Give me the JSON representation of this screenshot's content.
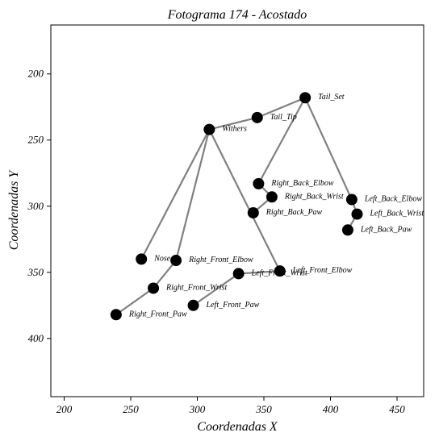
{
  "chart_data": {
    "type": "scatter",
    "title": "Fotograma 174 - Acostado",
    "xlabel": "Coordenadas X",
    "ylabel": "Coordenadas Y",
    "xlim": [
      190,
      470
    ],
    "ylim": [
      444,
      163
    ],
    "y_inverted": true,
    "grid": false,
    "x_ticks": [
      200,
      250,
      300,
      350,
      400,
      450
    ],
    "y_ticks": [
      200,
      250,
      300,
      350,
      400
    ],
    "x_tick_labels": [
      "200",
      "250",
      "300",
      "350",
      "400",
      "450"
    ],
    "y_tick_labels": [
      "200",
      "250",
      "300",
      "350",
      "400"
    ],
    "point_color": "#000000",
    "line_color": "#808080",
    "points": [
      {
        "name": "Tail_Set",
        "x": 381,
        "y": 218
      },
      {
        "name": "Tail_Tip",
        "x": 345,
        "y": 233
      },
      {
        "name": "Withers",
        "x": 309,
        "y": 242
      },
      {
        "name": "Right_Back_Elbow",
        "x": 346,
        "y": 283
      },
      {
        "name": "Right_Back_Wrist",
        "x": 356,
        "y": 293
      },
      {
        "name": "Right_Back_Paw",
        "x": 342,
        "y": 305
      },
      {
        "name": "Left_Back_Elbow",
        "x": 416,
        "y": 295
      },
      {
        "name": "Left_Back_Wrist",
        "x": 420,
        "y": 306
      },
      {
        "name": "Left_Back_Paw",
        "x": 413,
        "y": 318
      },
      {
        "name": "Nose",
        "x": 258,
        "y": 340
      },
      {
        "name": "Right_Front_Elbow",
        "x": 284,
        "y": 341
      },
      {
        "name": "Right_Front_Wrist",
        "x": 267,
        "y": 362
      },
      {
        "name": "Right_Front_Paw",
        "x": 239,
        "y": 382
      },
      {
        "name": "Left_Front_Elbow",
        "x": 362,
        "y": 349
      },
      {
        "name": "Left_Front_Wrist",
        "x": 331,
        "y": 351
      },
      {
        "name": "Left_Front_Paw",
        "x": 297,
        "y": 375
      }
    ],
    "connections": [
      [
        "Tail_Set",
        "Tail_Tip"
      ],
      [
        "Tail_Tip",
        "Withers"
      ],
      [
        "Tail_Set",
        "Right_Back_Elbow"
      ],
      [
        "Right_Back_Elbow",
        "Right_Back_Wrist"
      ],
      [
        "Right_Back_Wrist",
        "Right_Back_Paw"
      ],
      [
        "Tail_Set",
        "Left_Back_Elbow"
      ],
      [
        "Left_Back_Elbow",
        "Left_Back_Wrist"
      ],
      [
        "Left_Back_Wrist",
        "Left_Back_Paw"
      ],
      [
        "Withers",
        "Nose"
      ],
      [
        "Withers",
        "Right_Front_Elbow"
      ],
      [
        "Right_Front_Elbow",
        "Right_Front_Wrist"
      ],
      [
        "Right_Front_Wrist",
        "Right_Front_Paw"
      ],
      [
        "Withers",
        "Left_Front_Elbow"
      ],
      [
        "Left_Front_Elbow",
        "Left_Front_Wrist"
      ],
      [
        "Left_Front_Wrist",
        "Left_Front_Paw"
      ]
    ]
  }
}
